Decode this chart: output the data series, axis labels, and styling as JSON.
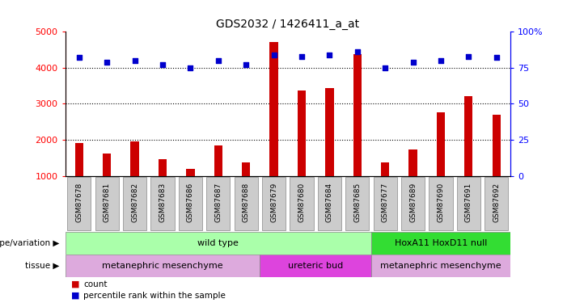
{
  "title": "GDS2032 / 1426411_a_at",
  "samples": [
    "GSM87678",
    "GSM87681",
    "GSM87682",
    "GSM87683",
    "GSM87686",
    "GSM87687",
    "GSM87688",
    "GSM87679",
    "GSM87680",
    "GSM87684",
    "GSM87685",
    "GSM87677",
    "GSM87689",
    "GSM87690",
    "GSM87691",
    "GSM87692"
  ],
  "counts": [
    1900,
    1620,
    1960,
    1450,
    1200,
    1850,
    1360,
    4720,
    3380,
    3430,
    4380,
    1370,
    1720,
    2760,
    3220,
    2690
  ],
  "percentiles": [
    82,
    79,
    80,
    77,
    75,
    80,
    77,
    84,
    83,
    84,
    86,
    75,
    79,
    80,
    83,
    82
  ],
  "bar_color": "#cc0000",
  "dot_color": "#0000cc",
  "ylim_left": [
    1000,
    5000
  ],
  "ylim_right": [
    0,
    100
  ],
  "yticks_left": [
    1000,
    2000,
    3000,
    4000,
    5000
  ],
  "yticks_right": [
    0,
    25,
    50,
    75,
    100
  ],
  "grid_values": [
    2000,
    3000,
    4000
  ],
  "genotype_row": [
    {
      "label": "wild type",
      "start": 0,
      "end": 10,
      "color": "#aaffaa"
    },
    {
      "label": "HoxA11 HoxD11 null",
      "start": 11,
      "end": 15,
      "color": "#33dd33"
    }
  ],
  "tissue_row": [
    {
      "label": "metanephric mesenchyme",
      "start": 0,
      "end": 6,
      "color": "#ddaadd"
    },
    {
      "label": "ureteric bud",
      "start": 7,
      "end": 10,
      "color": "#dd44dd"
    },
    {
      "label": "metanephric mesenchyme",
      "start": 11,
      "end": 15,
      "color": "#ddaadd"
    }
  ],
  "legend_count_color": "#cc0000",
  "legend_pct_color": "#0000cc",
  "bg_color": "#ffffff",
  "xtick_bg": "#cccccc"
}
